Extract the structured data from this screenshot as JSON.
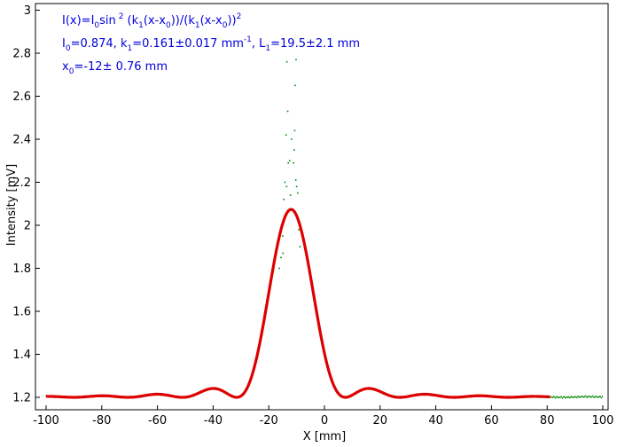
{
  "chart_data": {
    "type": "scatter",
    "title": "",
    "xlabel": "X [mm]",
    "ylabel": "Intensity [mV]",
    "xlim": [
      -100,
      100
    ],
    "ylim": [
      1.17,
      3.01
    ],
    "xticks": [
      -100,
      -80,
      -60,
      -40,
      -20,
      0,
      20,
      40,
      60,
      80,
      100
    ],
    "yticks": [
      1.2,
      1.4,
      1.6,
      1.8,
      2.0,
      2.2,
      2.4,
      2.6,
      2.8,
      3.0
    ],
    "ytick_labels": [
      "1.2",
      "1.4",
      "1.6",
      "1.8",
      "2",
      "2.2",
      "2.4",
      "2.6",
      "2.8",
      "3"
    ],
    "grid": false,
    "legend": "none",
    "fit": {
      "formula": {
        "lhs": "I(x)=I",
        "s0": "0",
        "sin": "sin",
        "sq": "2",
        "open": "(k",
        "s1": "1",
        "xminus": "(x-x",
        "s2": "0",
        "mid": "))/(k",
        "s3": "1",
        "xminus2": "(x-x",
        "s4": "0",
        "close": "))",
        "sq2": "2"
      },
      "params_line1": {
        "i0": "I",
        "i0sub": "0",
        "i0val": "=0.874,  k",
        "k1sub": "1",
        "k1val": "=0.161±0.017 mm",
        "k1exp": "-1",
        "sep": ",   L",
        "l1sub": "1",
        "l1val": "=19.5±2.1 mm"
      },
      "params_line2": {
        "x0": "x",
        "x0sub": "0",
        "x0val": "=-12±   0.76 mm"
      },
      "I0": 0.874,
      "k1": 0.161,
      "x0": -12,
      "offset": 1.2
    },
    "series": [
      {
        "kind": "measured-points",
        "color": "#008800"
      },
      {
        "kind": "fit-curve",
        "color": "#dd0000"
      }
    ],
    "x_fit_range": [
      -100,
      81
    ],
    "x_data_range": [
      -100,
      100
    ],
    "peak_scatter_points": [
      [
        -13.5,
        2.76
      ],
      [
        -13.2,
        2.53
      ],
      [
        -13.8,
        2.42
      ],
      [
        -13.0,
        2.29
      ],
      [
        -14.2,
        2.2
      ],
      [
        -10.2,
        2.77
      ],
      [
        -10.5,
        2.65
      ],
      [
        -10.7,
        2.44
      ],
      [
        -10.9,
        2.35
      ],
      [
        -11.1,
        2.29
      ],
      [
        -10.3,
        2.21
      ],
      [
        -10.0,
        2.18
      ],
      [
        -11.8,
        2.4
      ],
      [
        -12.5,
        2.3
      ],
      [
        -14.6,
        2.12
      ],
      [
        -9.6,
        2.15
      ],
      [
        -15.0,
        1.95
      ],
      [
        -15.6,
        1.85
      ],
      [
        -16.2,
        1.8
      ],
      [
        -9.2,
        1.98
      ],
      [
        -8.8,
        1.9
      ],
      [
        -12.2,
        2.14
      ],
      [
        -13.6,
        2.18
      ],
      [
        -14.9,
        1.87
      ]
    ]
  }
}
